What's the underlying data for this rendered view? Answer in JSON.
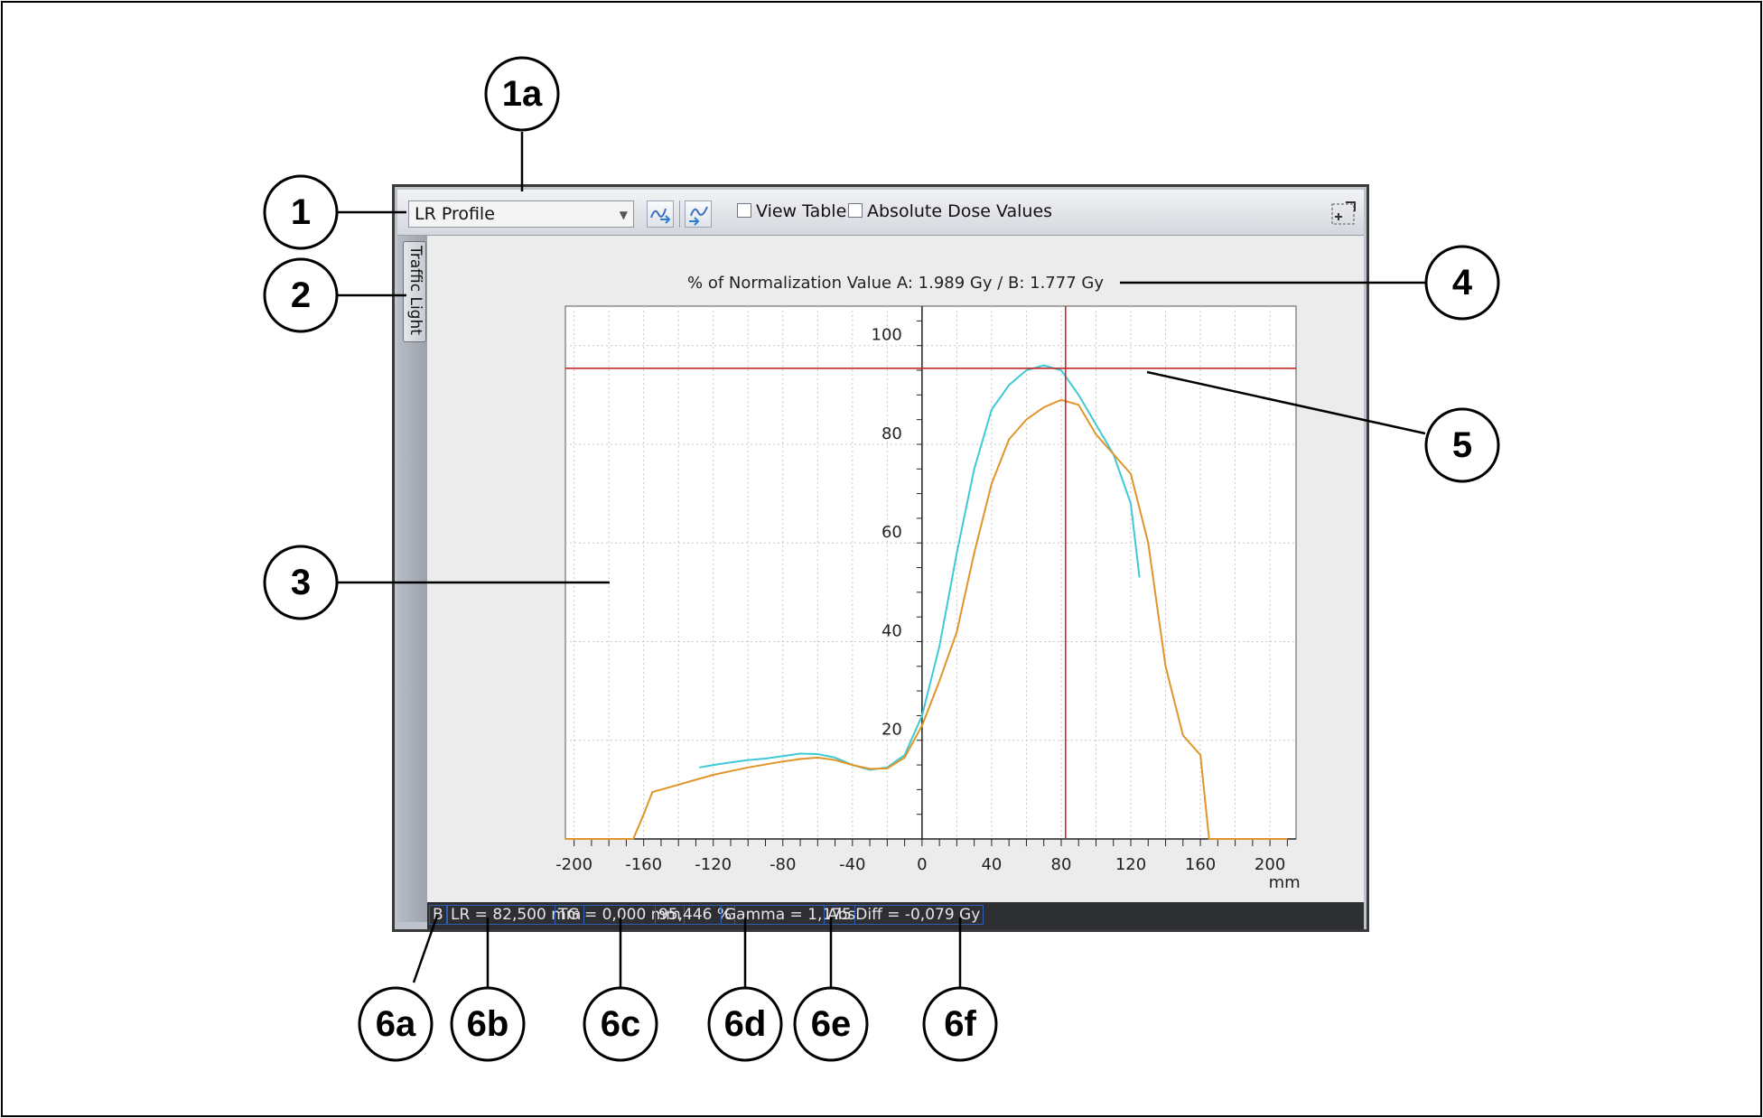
{
  "toolbar": {
    "profile_selector": "LR Profile",
    "view_table_label": "View Table",
    "view_table_checked": false,
    "absolute_dose_label": "Absolute Dose Values",
    "absolute_dose_checked": false
  },
  "side_tab": {
    "label": "Traffic Light"
  },
  "normalization_label": "% of Normalization Value A: 1.989 Gy  / B: 1.777 Gy",
  "status_bar": {
    "plan": "B",
    "lr": "LR = 82,500 mm",
    "tg": "TG = 0,000 mm",
    "percent": "95,446 %",
    "gamma": "Gamma = 1,175",
    "absdiff": "AbsDiff = -0,079 Gy"
  },
  "callouts": {
    "c1": "1",
    "c1a": "1a",
    "c2": "2",
    "c3": "3",
    "c4": "4",
    "c5": "5",
    "c6a": "6a",
    "c6b": "6b",
    "c6c": "6c",
    "c6d": "6d",
    "c6e": "6e",
    "c6f": "6f"
  },
  "chart_data": {
    "type": "line",
    "xlabel": "mm",
    "ylabel": "",
    "xlim": [
      -205,
      215
    ],
    "ylim": [
      0,
      108
    ],
    "x_ticks": [
      -200,
      -160,
      -120,
      -80,
      -40,
      0,
      40,
      80,
      120,
      160,
      200
    ],
    "y_ticks": [
      20,
      40,
      60,
      80,
      100
    ],
    "cursor": {
      "x": 82.5,
      "y": 95.4
    },
    "colors": {
      "series_a": "#3ec9d6",
      "series_b": "#e0952a",
      "cursor": "#c62828",
      "grid": "#c8c8c8"
    },
    "series": [
      {
        "key": "a",
        "x": [
          -128,
          -120,
          -110,
          -100,
          -90,
          -80,
          -70,
          -60,
          -50,
          -40,
          -30,
          -20,
          -10,
          0,
          10,
          20,
          30,
          40,
          50,
          60,
          70,
          80,
          90,
          100,
          110,
          120,
          125
        ],
        "values": [
          14.5,
          15,
          15.5,
          16,
          16.3,
          16.8,
          17.3,
          17.2,
          16.5,
          15,
          14,
          14.5,
          17,
          25,
          39,
          58,
          75,
          87,
          92,
          95,
          96,
          95,
          90,
          84,
          78,
          68,
          53
        ]
      },
      {
        "key": "b",
        "x": [
          -205,
          -175,
          -166,
          -160,
          -155,
          -140,
          -120,
          -100,
          -80,
          -70,
          -60,
          -50,
          -40,
          -30,
          -20,
          -10,
          0,
          10,
          20,
          30,
          40,
          50,
          60,
          70,
          80,
          90,
          100,
          110,
          120,
          130,
          140,
          150,
          160,
          165,
          210
        ],
        "values": [
          0,
          0,
          0,
          5,
          9.5,
          11,
          13,
          14.5,
          15.7,
          16.2,
          16.5,
          16,
          15,
          14.2,
          14.3,
          16.5,
          23,
          32,
          42,
          58,
          72,
          81,
          85,
          87.5,
          89,
          88,
          82,
          78,
          74,
          60,
          35,
          21,
          17,
          0,
          0
        ]
      }
    ]
  }
}
